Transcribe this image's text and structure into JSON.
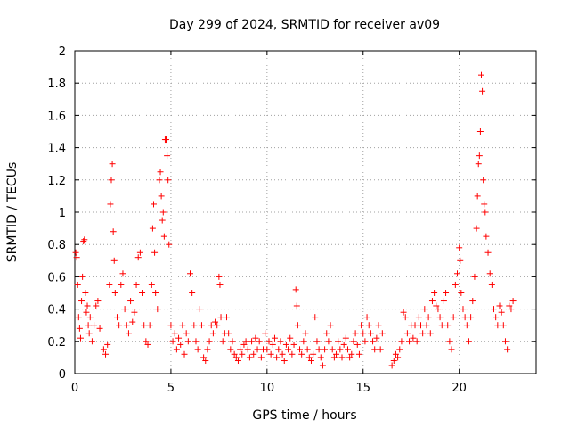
{
  "chart_data": {
    "type": "scatter",
    "title": "Day 299 of 2024, SRMTID for receiver av09",
    "xlabel": "GPS time / hours",
    "ylabel": "SRMTID / TECUs",
    "xlim": [
      0,
      24
    ],
    "ylim": [
      0,
      2
    ],
    "xticks": [
      "0",
      "5",
      "10",
      "15",
      "20"
    ],
    "yticks": [
      "0",
      "0.2",
      "0.4",
      "0.6",
      "0.8",
      "1",
      "1.2",
      "1.4",
      "1.6",
      "1.8",
      "2"
    ],
    "grid": true,
    "marker": "+",
    "color": "#ff0000",
    "series": [
      {
        "name": "SRMTID",
        "points": [
          [
            0.05,
            0.75
          ],
          [
            0.1,
            0.72
          ],
          [
            0.15,
            0.55
          ],
          [
            0.2,
            0.35
          ],
          [
            0.25,
            0.28
          ],
          [
            0.3,
            0.22
          ],
          [
            0.35,
            0.45
          ],
          [
            0.4,
            0.6
          ],
          [
            0.45,
            0.82
          ],
          [
            0.5,
            0.83
          ],
          [
            0.55,
            0.5
          ],
          [
            0.6,
            0.38
          ],
          [
            0.65,
            0.42
          ],
          [
            0.7,
            0.3
          ],
          [
            0.75,
            0.25
          ],
          [
            0.8,
            0.35
          ],
          [
            0.9,
            0.2
          ],
          [
            1.0,
            0.3
          ],
          [
            1.1,
            0.42
          ],
          [
            1.2,
            0.45
          ],
          [
            1.3,
            0.28
          ],
          [
            1.5,
            0.15
          ],
          [
            1.6,
            0.12
          ],
          [
            1.7,
            0.18
          ],
          [
            1.8,
            0.55
          ],
          [
            1.85,
            1.05
          ],
          [
            1.9,
            1.2
          ],
          [
            1.95,
            1.3
          ],
          [
            2.0,
            0.88
          ],
          [
            2.05,
            0.7
          ],
          [
            2.1,
            0.5
          ],
          [
            2.2,
            0.35
          ],
          [
            2.3,
            0.3
          ],
          [
            2.4,
            0.55
          ],
          [
            2.5,
            0.62
          ],
          [
            2.6,
            0.4
          ],
          [
            2.7,
            0.3
          ],
          [
            2.8,
            0.25
          ],
          [
            2.9,
            0.45
          ],
          [
            3.0,
            0.32
          ],
          [
            3.1,
            0.38
          ],
          [
            3.2,
            0.55
          ],
          [
            3.3,
            0.72
          ],
          [
            3.4,
            0.75
          ],
          [
            3.5,
            0.5
          ],
          [
            3.6,
            0.3
          ],
          [
            3.7,
            0.2
          ],
          [
            3.8,
            0.18
          ],
          [
            3.9,
            0.3
          ],
          [
            4.0,
            0.55
          ],
          [
            4.05,
            0.9
          ],
          [
            4.1,
            1.05
          ],
          [
            4.15,
            0.75
          ],
          [
            4.2,
            0.5
          ],
          [
            4.3,
            0.4
          ],
          [
            4.4,
            1.2
          ],
          [
            4.45,
            1.25
          ],
          [
            4.5,
            1.1
          ],
          [
            4.55,
            0.95
          ],
          [
            4.6,
            1.0
          ],
          [
            4.65,
            0.85
          ],
          [
            4.7,
            1.45
          ],
          [
            4.75,
            1.45
          ],
          [
            4.8,
            1.35
          ],
          [
            4.85,
            1.2
          ],
          [
            4.9,
            0.8
          ],
          [
            5.0,
            0.3
          ],
          [
            5.1,
            0.2
          ],
          [
            5.2,
            0.25
          ],
          [
            5.3,
            0.15
          ],
          [
            5.4,
            0.22
          ],
          [
            5.5,
            0.18
          ],
          [
            5.6,
            0.3
          ],
          [
            5.7,
            0.12
          ],
          [
            5.8,
            0.25
          ],
          [
            5.9,
            0.2
          ],
          [
            6.0,
            0.62
          ],
          [
            6.1,
            0.5
          ],
          [
            6.2,
            0.3
          ],
          [
            6.3,
            0.2
          ],
          [
            6.4,
            0.15
          ],
          [
            6.5,
            0.4
          ],
          [
            6.6,
            0.3
          ],
          [
            6.7,
            0.1
          ],
          [
            6.8,
            0.08
          ],
          [
            6.9,
            0.15
          ],
          [
            7.0,
            0.2
          ],
          [
            7.1,
            0.3
          ],
          [
            7.2,
            0.25
          ],
          [
            7.3,
            0.32
          ],
          [
            7.4,
            0.3
          ],
          [
            7.5,
            0.6
          ],
          [
            7.55,
            0.55
          ],
          [
            7.6,
            0.35
          ],
          [
            7.7,
            0.2
          ],
          [
            7.8,
            0.25
          ],
          [
            7.9,
            0.35
          ],
          [
            8.0,
            0.25
          ],
          [
            8.1,
            0.15
          ],
          [
            8.2,
            0.2
          ],
          [
            8.3,
            0.12
          ],
          [
            8.4,
            0.1
          ],
          [
            8.5,
            0.08
          ],
          [
            8.6,
            0.15
          ],
          [
            8.7,
            0.12
          ],
          [
            8.8,
            0.18
          ],
          [
            8.9,
            0.2
          ],
          [
            9.0,
            0.15
          ],
          [
            9.1,
            0.1
          ],
          [
            9.2,
            0.2
          ],
          [
            9.3,
            0.12
          ],
          [
            9.4,
            0.22
          ],
          [
            9.5,
            0.15
          ],
          [
            9.6,
            0.2
          ],
          [
            9.7,
            0.1
          ],
          [
            9.8,
            0.15
          ],
          [
            9.9,
            0.25
          ],
          [
            10.0,
            0.15
          ],
          [
            10.1,
            0.2
          ],
          [
            10.2,
            0.12
          ],
          [
            10.3,
            0.18
          ],
          [
            10.4,
            0.22
          ],
          [
            10.5,
            0.1
          ],
          [
            10.6,
            0.15
          ],
          [
            10.7,
            0.2
          ],
          [
            10.8,
            0.12
          ],
          [
            10.9,
            0.08
          ],
          [
            11.0,
            0.18
          ],
          [
            11.1,
            0.15
          ],
          [
            11.2,
            0.22
          ],
          [
            11.3,
            0.12
          ],
          [
            11.4,
            0.18
          ],
          [
            11.5,
            0.52
          ],
          [
            11.55,
            0.42
          ],
          [
            11.6,
            0.3
          ],
          [
            11.7,
            0.15
          ],
          [
            11.8,
            0.12
          ],
          [
            11.9,
            0.2
          ],
          [
            12.0,
            0.25
          ],
          [
            12.1,
            0.15
          ],
          [
            12.2,
            0.1
          ],
          [
            12.3,
            0.08
          ],
          [
            12.4,
            0.12
          ],
          [
            12.5,
            0.35
          ],
          [
            12.6,
            0.2
          ],
          [
            12.7,
            0.15
          ],
          [
            12.8,
            0.1
          ],
          [
            12.9,
            0.05
          ],
          [
            13.0,
            0.15
          ],
          [
            13.1,
            0.25
          ],
          [
            13.2,
            0.2
          ],
          [
            13.3,
            0.3
          ],
          [
            13.4,
            0.15
          ],
          [
            13.5,
            0.1
          ],
          [
            13.6,
            0.12
          ],
          [
            13.7,
            0.2
          ],
          [
            13.8,
            0.15
          ],
          [
            13.9,
            0.1
          ],
          [
            14.0,
            0.18
          ],
          [
            14.1,
            0.22
          ],
          [
            14.2,
            0.15
          ],
          [
            14.3,
            0.1
          ],
          [
            14.4,
            0.12
          ],
          [
            14.5,
            0.2
          ],
          [
            14.6,
            0.25
          ],
          [
            14.7,
            0.18
          ],
          [
            14.8,
            0.12
          ],
          [
            14.9,
            0.3
          ],
          [
            15.0,
            0.25
          ],
          [
            15.1,
            0.2
          ],
          [
            15.2,
            0.35
          ],
          [
            15.3,
            0.3
          ],
          [
            15.4,
            0.25
          ],
          [
            15.5,
            0.2
          ],
          [
            15.6,
            0.15
          ],
          [
            15.7,
            0.22
          ],
          [
            15.8,
            0.3
          ],
          [
            15.9,
            0.15
          ],
          [
            16.0,
            0.25
          ],
          [
            16.5,
            0.05
          ],
          [
            16.6,
            0.08
          ],
          [
            16.7,
            0.12
          ],
          [
            16.8,
            0.1
          ],
          [
            16.9,
            0.15
          ],
          [
            17.0,
            0.2
          ],
          [
            17.1,
            0.38
          ],
          [
            17.2,
            0.35
          ],
          [
            17.3,
            0.25
          ],
          [
            17.4,
            0.2
          ],
          [
            17.5,
            0.3
          ],
          [
            17.6,
            0.22
          ],
          [
            17.7,
            0.3
          ],
          [
            17.8,
            0.2
          ],
          [
            17.9,
            0.35
          ],
          [
            18.0,
            0.3
          ],
          [
            18.1,
            0.25
          ],
          [
            18.2,
            0.4
          ],
          [
            18.3,
            0.3
          ],
          [
            18.4,
            0.35
          ],
          [
            18.5,
            0.25
          ],
          [
            18.6,
            0.45
          ],
          [
            18.7,
            0.5
          ],
          [
            18.8,
            0.42
          ],
          [
            18.9,
            0.4
          ],
          [
            19.0,
            0.35
          ],
          [
            19.1,
            0.3
          ],
          [
            19.2,
            0.45
          ],
          [
            19.3,
            0.5
          ],
          [
            19.4,
            0.3
          ],
          [
            19.5,
            0.2
          ],
          [
            19.6,
            0.15
          ],
          [
            19.7,
            0.35
          ],
          [
            19.8,
            0.55
          ],
          [
            19.9,
            0.62
          ],
          [
            20.0,
            0.78
          ],
          [
            20.05,
            0.7
          ],
          [
            20.1,
            0.5
          ],
          [
            20.2,
            0.4
          ],
          [
            20.3,
            0.35
          ],
          [
            20.4,
            0.3
          ],
          [
            20.5,
            0.2
          ],
          [
            20.6,
            0.35
          ],
          [
            20.7,
            0.45
          ],
          [
            20.8,
            0.6
          ],
          [
            20.9,
            0.9
          ],
          [
            20.95,
            1.1
          ],
          [
            21.0,
            1.3
          ],
          [
            21.05,
            1.35
          ],
          [
            21.1,
            1.5
          ],
          [
            21.15,
            1.85
          ],
          [
            21.2,
            1.75
          ],
          [
            21.25,
            1.2
          ],
          [
            21.3,
            1.05
          ],
          [
            21.35,
            1.0
          ],
          [
            21.4,
            0.85
          ],
          [
            21.5,
            0.75
          ],
          [
            21.6,
            0.62
          ],
          [
            21.7,
            0.55
          ],
          [
            21.8,
            0.4
          ],
          [
            21.9,
            0.35
          ],
          [
            22.0,
            0.3
          ],
          [
            22.1,
            0.42
          ],
          [
            22.2,
            0.38
          ],
          [
            22.3,
            0.3
          ],
          [
            22.4,
            0.2
          ],
          [
            22.5,
            0.15
          ],
          [
            22.6,
            0.42
          ],
          [
            22.7,
            0.4
          ],
          [
            22.8,
            0.45
          ]
        ]
      }
    ]
  }
}
